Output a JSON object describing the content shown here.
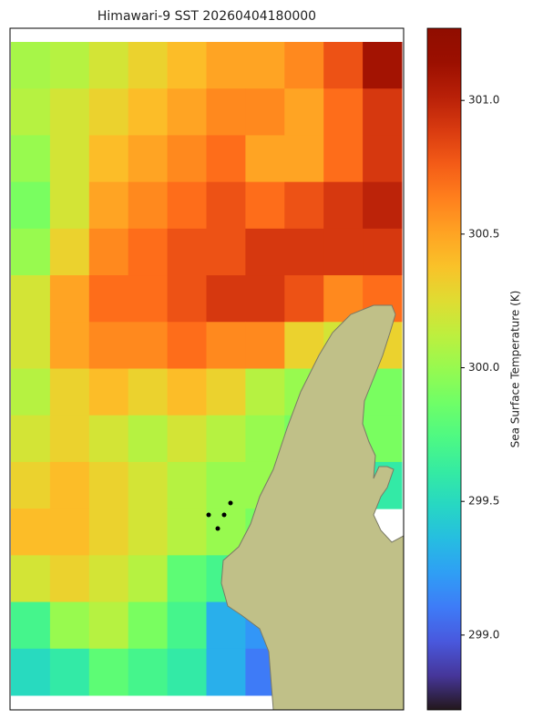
{
  "chart_data": {
    "type": "heatmap",
    "title": "Himawari-9 SST 20260404180000",
    "colormap": "turbo",
    "land_color": "#c0c088",
    "values": [
      [
        300.05,
        300.1,
        300.2,
        300.3,
        300.4,
        300.5,
        300.5,
        300.6,
        300.8,
        301.1
      ],
      [
        300.1,
        300.2,
        300.3,
        300.4,
        300.5,
        300.6,
        300.6,
        300.5,
        300.7,
        300.9
      ],
      [
        300.0,
        300.2,
        300.4,
        300.5,
        300.6,
        300.7,
        300.5,
        300.5,
        300.7,
        300.9
      ],
      [
        299.9,
        300.2,
        300.5,
        300.6,
        300.7,
        300.8,
        300.7,
        300.8,
        300.9,
        301.0
      ],
      [
        300.0,
        300.3,
        300.6,
        300.7,
        300.8,
        300.8,
        300.9,
        300.9,
        300.9,
        300.9
      ],
      [
        300.2,
        300.5,
        300.7,
        300.7,
        300.8,
        300.9,
        300.9,
        300.8,
        300.6,
        300.7
      ],
      [
        300.2,
        300.5,
        300.6,
        300.6,
        300.7,
        300.6,
        300.6,
        300.3,
        300.2,
        300.3
      ],
      [
        300.1,
        300.3,
        300.4,
        300.3,
        300.4,
        300.3,
        300.1,
        300.0,
        null,
        299.9
      ],
      [
        300.2,
        300.3,
        300.2,
        300.1,
        300.2,
        300.1,
        300.0,
        299.9,
        null,
        299.9
      ],
      [
        300.3,
        300.4,
        300.3,
        300.2,
        300.1,
        300.0,
        300.0,
        null,
        null,
        299.6
      ],
      [
        300.4,
        300.4,
        300.3,
        300.2,
        300.1,
        300.0,
        299.9,
        null,
        null,
        null
      ],
      [
        300.2,
        300.3,
        300.2,
        300.1,
        299.8,
        299.7,
        299.5,
        null,
        null,
        null
      ],
      [
        299.7,
        300.0,
        300.1,
        299.9,
        299.7,
        299.3,
        299.2,
        null,
        null,
        null
      ],
      [
        299.5,
        299.6,
        299.8,
        299.7,
        299.6,
        299.3,
        299.1,
        null,
        null,
        null
      ]
    ],
    "colorbar": {
      "label": "Sea Surface Temperature (K)",
      "lim": [
        298.72,
        301.27
      ],
      "ticks": [
        {
          "value": 299,
          "label": "299.0"
        },
        {
          "value": 299.5,
          "label": "299.5"
        },
        {
          "value": 300,
          "label": "300.0"
        },
        {
          "value": 300.5,
          "label": "300.5"
        },
        {
          "value": 301,
          "label": "301.0"
        }
      ]
    }
  }
}
